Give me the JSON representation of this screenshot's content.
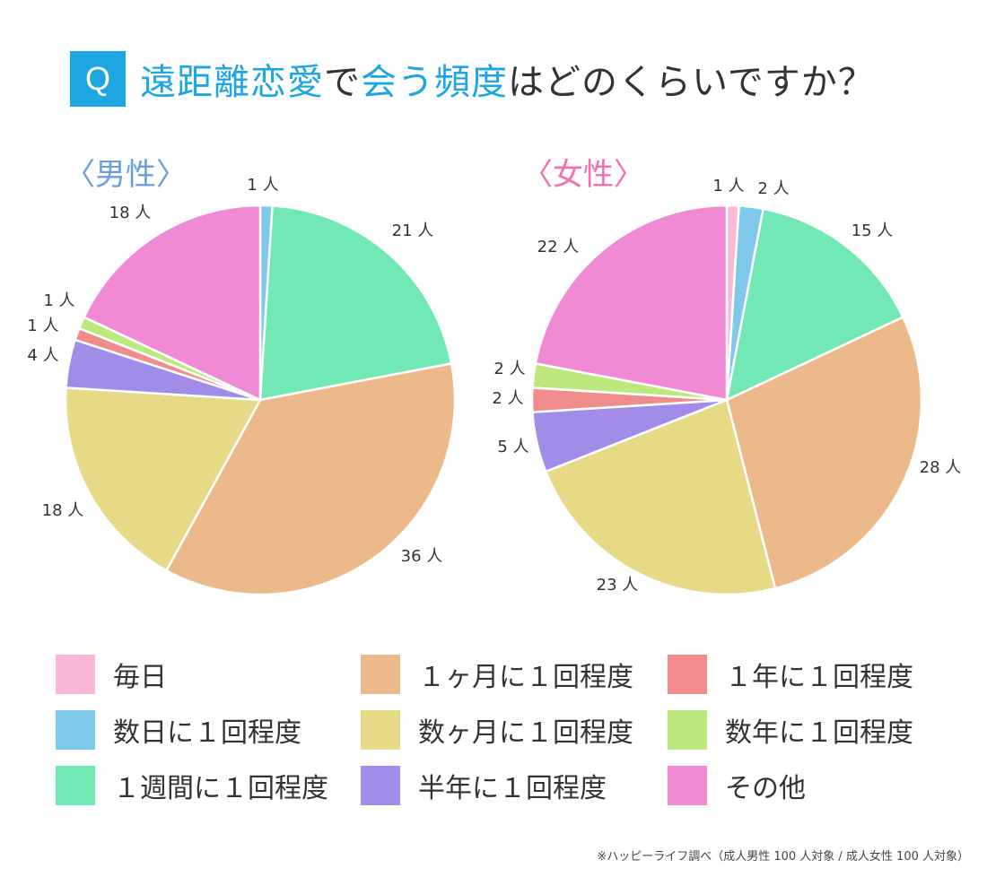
{
  "header": {
    "badge": "Q",
    "title_parts": [
      {
        "text": "遠距離恋愛",
        "highlight": true
      },
      {
        "text": "で",
        "highlight": false
      },
      {
        "text": "会う頻度",
        "highlight": true
      },
      {
        "text": "はどのくらいですか？",
        "highlight": false
      }
    ]
  },
  "colors": {
    "accent": "#1ea6e3",
    "male_label": "#6b9ee0",
    "female_label": "#f06fb5"
  },
  "chart_data": [
    {
      "type": "pie",
      "title": "〈男性〉",
      "categories": [
        "毎日",
        "数日に１回程度",
        "１週間に１回程度",
        "１ヶ月に１回程度",
        "数ヶ月に１回程度",
        "半年に１回程度",
        "１年に１回程度",
        "数年に１回程度",
        "その他"
      ],
      "values": [
        0,
        1,
        21,
        36,
        18,
        4,
        1,
        1,
        18
      ],
      "value_labels": [
        "",
        "1 人",
        "21 人",
        "36 人",
        "18 人",
        "4 人",
        "1 人",
        "1 人",
        "18 人"
      ],
      "colors": [
        "#f9b8d8",
        "#7ec8ea",
        "#72e8b4",
        "#ecb98a",
        "#e6da86",
        "#a18de8",
        "#f08c8c",
        "#bde87d",
        "#f08ad4"
      ],
      "total": 100
    },
    {
      "type": "pie",
      "title": "〈女性〉",
      "categories": [
        "毎日",
        "数日に１回程度",
        "１週間に１回程度",
        "１ヶ月に１回程度",
        "数ヶ月に１回程度",
        "半年に１回程度",
        "１年に１回程度",
        "数年に１回程度",
        "その他"
      ],
      "values": [
        1,
        2,
        15,
        28,
        23,
        5,
        2,
        2,
        22
      ],
      "value_labels": [
        "1 人",
        "2 人",
        "15 人",
        "28 人",
        "23 人",
        "5 人",
        "2 人",
        "2 人",
        "22 人"
      ],
      "colors": [
        "#f9b8d8",
        "#7ec8ea",
        "#72e8b4",
        "#ecb98a",
        "#e6da86",
        "#a18de8",
        "#f08c8c",
        "#bde87d",
        "#f08ad4"
      ],
      "total": 100
    }
  ],
  "legend": [
    {
      "label": "毎日",
      "color": "#f9b8d8"
    },
    {
      "label": "数日に１回程度",
      "color": "#7ec8ea"
    },
    {
      "label": "１週間に１回程度",
      "color": "#72e8b4"
    },
    {
      "label": "１ヶ月に１回程度",
      "color": "#ecb98a"
    },
    {
      "label": "数ヶ月に１回程度",
      "color": "#e6da86"
    },
    {
      "label": "半年に１回程度",
      "color": "#a18de8"
    },
    {
      "label": "１年に１回程度",
      "color": "#f08c8c"
    },
    {
      "label": "数年に１回程度",
      "color": "#bde87d"
    },
    {
      "label": "その他",
      "color": "#f08ad4"
    }
  ],
  "footnote": "※ハッピーライフ調べ（成人男性 100 人対象 / 成人女性 100 人対象）"
}
